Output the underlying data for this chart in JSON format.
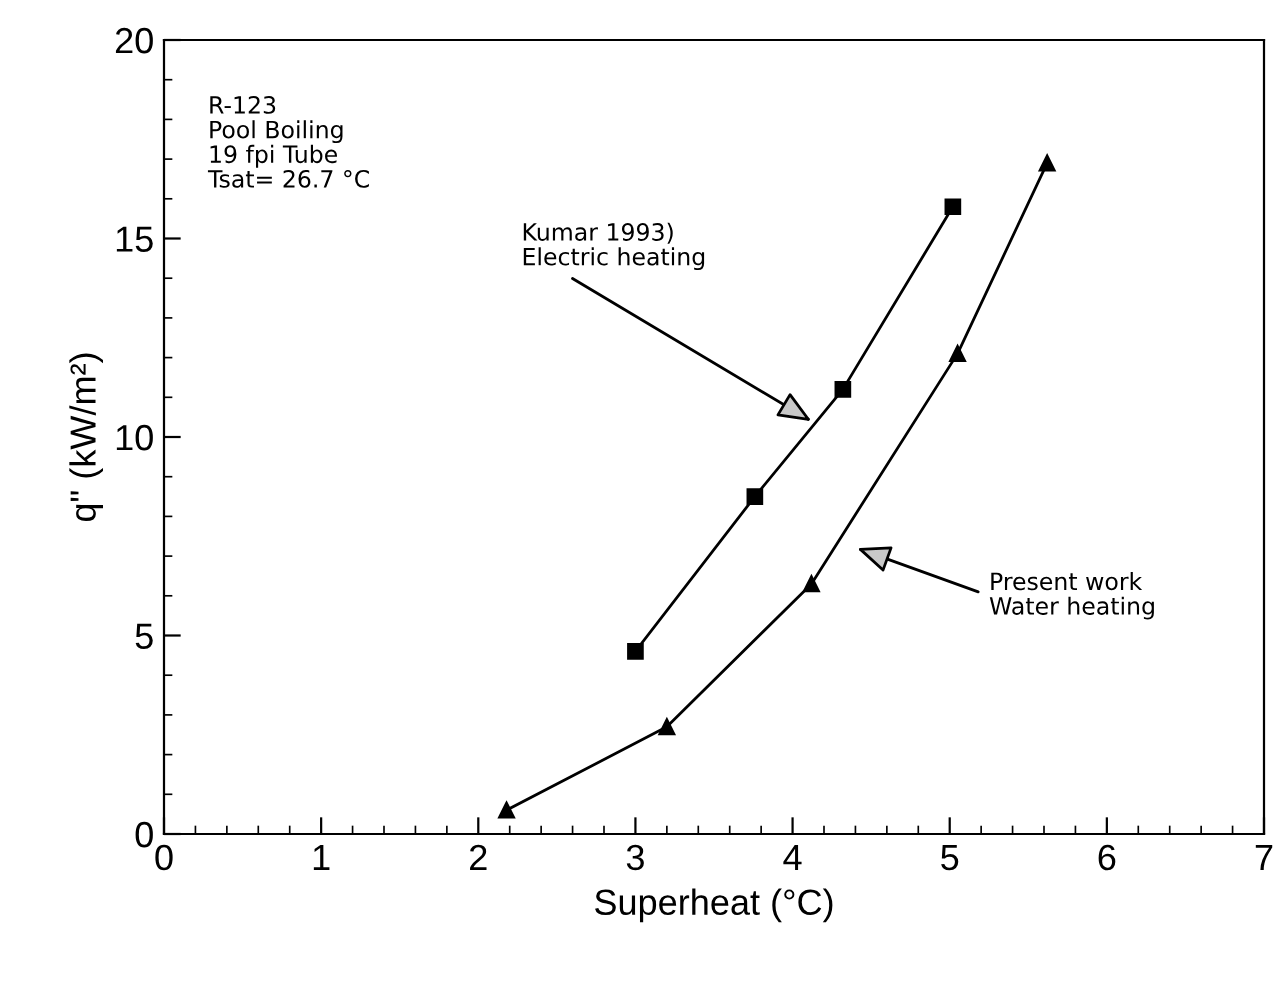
{
  "chart_data": {
    "type": "line",
    "xlabel": "Superheat (°C)",
    "ylabel": "q\" (kW/m²)",
    "xlim": [
      0,
      7
    ],
    "ylim": [
      0,
      20
    ],
    "xticks": [
      0,
      1,
      2,
      3,
      4,
      5,
      6,
      7
    ],
    "yticks": [
      0,
      5,
      10,
      15,
      20
    ],
    "grid": false,
    "legend": false,
    "series": [
      {
        "x": [
          3.0,
          3.76,
          4.32,
          5.02
        ],
        "values": [
          4.6,
          8.5,
          11.2,
          15.8
        ],
        "color": "#000000",
        "marker": "square",
        "line_style": "solid"
      },
      {
        "x": [
          2.18,
          3.2,
          4.12,
          5.05,
          5.62
        ],
        "values": [
          0.6,
          2.7,
          6.3,
          12.1,
          16.9
        ],
        "color": "#000000",
        "marker": "triangle",
        "line_style": "solid"
      }
    ],
    "annotations": [
      "R-123\nPool Boiling\n19 fpi Tube\nTsat= 26.7 °C",
      {
        "text": "Kumar 1993)\nElectric heating",
        "x": 4.12,
        "y": 10.4
      },
      "Present work\nWater heating"
    ]
  }
}
